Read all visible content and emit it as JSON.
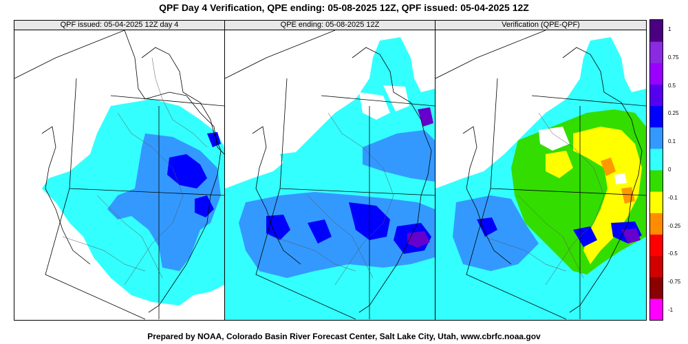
{
  "title": "QPF Day 4 Verification, QPE ending: 05-08-2025 12Z, QPF issued: 05-04-2025 12Z",
  "panels": [
    {
      "id": "qpf",
      "header": "QPF issued: 05-04-2025 12Z day 4"
    },
    {
      "id": "qpe",
      "header": "QPE ending: 05-08-2025 12Z"
    },
    {
      "id": "verif",
      "header": "Verification (QPE-QPF)"
    }
  ],
  "legend": {
    "colors": [
      "#ff00ff",
      "#8b0000",
      "#d00000",
      "#ff0000",
      "#ff8c00",
      "#ffff00",
      "#33dd00",
      "#33ffff",
      "#3399ff",
      "#0000ff",
      "#5500ee",
      "#9900ff",
      "#8a2be2",
      "#4b0082"
    ],
    "ticks": [
      {
        "label": "1",
        "value": 1
      },
      {
        "label": "0.75",
        "value": 0.75
      },
      {
        "label": "0.5",
        "value": 0.5
      },
      {
        "label": "0.25",
        "value": 0.25
      },
      {
        "label": "0.1",
        "value": 0.1
      },
      {
        "label": "0",
        "value": 0
      },
      {
        "label": "-0.1",
        "value": -0.1
      },
      {
        "label": "-0.25",
        "value": -0.25
      },
      {
        "label": "-0.5",
        "value": -0.5
      },
      {
        "label": "-0.75",
        "value": -0.75
      },
      {
        "label": "-1",
        "value": -1
      }
    ]
  },
  "colors": {
    "cyan": "#33ffff",
    "lightblue": "#3399ff",
    "blue": "#0000ff",
    "darkblue": "#2200cc",
    "purple": "#6600cc",
    "green": "#33dd00",
    "yellow": "#ffff00",
    "orange": "#ff9900"
  },
  "footer": "Prepared by NOAA, Colorado Basin River Forecast Center, Salt Lake City, Utah, www.cbrfc.noaa.gov"
}
